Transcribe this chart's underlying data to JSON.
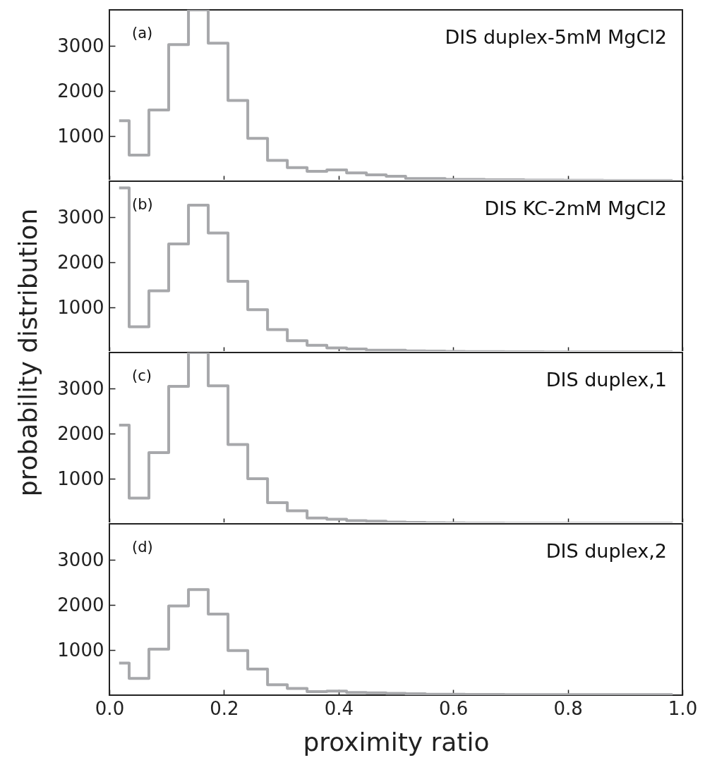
{
  "chart_data": [
    {
      "type": "step",
      "annotations": [
        "(a)",
        "DIS duplex-5mM MgCl2"
      ],
      "x": [
        0.017,
        0.052,
        0.086,
        0.121,
        0.155,
        0.19,
        0.224,
        0.259,
        0.293,
        0.328,
        0.362,
        0.397,
        0.431,
        0.466,
        0.5,
        0.534,
        0.569,
        0.603,
        0.638,
        0.672,
        0.707,
        0.741,
        0.776,
        0.81,
        0.845,
        0.879,
        0.914,
        0.948,
        0.983
      ],
      "series": [
        {
          "color": "#a7a8ab",
          "values": [
            1340,
            580,
            1580,
            3030,
            3800,
            3060,
            1790,
            950,
            460,
            300,
            220,
            250,
            185,
            140,
            110,
            60,
            60,
            40,
            40,
            30,
            30,
            25,
            25,
            20,
            20,
            15,
            15,
            15,
            15
          ]
        }
      ],
      "xlim": [
        0,
        1
      ],
      "ylim": [
        0,
        3800
      ],
      "yticks": [
        1000,
        2000,
        3000
      ],
      "xticks": [
        {
          "value": 0,
          "label": null
        },
        {
          "value": 0.2,
          "label": null
        },
        {
          "value": 0.4,
          "label": null
        },
        {
          "value": 0.6,
          "label": null
        },
        {
          "value": 0.8,
          "label": null
        },
        {
          "value": 1,
          "label": null
        }
      ],
      "tick_labels": "y",
      "grid": false
    },
    {
      "type": "step",
      "annotations": [
        "(b)",
        "DIS KC-2mM MgCl2"
      ],
      "ylabel": "probability distribution",
      "x": [
        0.017,
        0.052,
        0.086,
        0.121,
        0.155,
        0.19,
        0.224,
        0.259,
        0.293,
        0.328,
        0.362,
        0.397,
        0.431,
        0.466,
        0.5,
        0.534,
        0.569,
        0.603,
        0.638,
        0.672,
        0.707,
        0.741,
        0.776,
        0.81,
        0.845,
        0.879,
        0.914,
        0.948,
        0.983
      ],
      "series": [
        {
          "color": "#a7a8ab",
          "values": [
            3650,
            570,
            1370,
            2410,
            3270,
            2650,
            1580,
            950,
            510,
            260,
            160,
            100,
            80,
            50,
            50,
            35,
            30,
            25,
            20,
            20,
            15,
            15,
            10,
            10,
            10,
            10,
            10,
            10,
            10
          ]
        }
      ],
      "xlim": [
        0,
        1
      ],
      "ylim": [
        0,
        3800
      ],
      "yticks": [
        1000,
        2000,
        3000
      ],
      "xticks": [
        {
          "value": 0,
          "label": null
        },
        {
          "value": 0.2,
          "label": null
        },
        {
          "value": 0.4,
          "label": null
        },
        {
          "value": 0.6,
          "label": null
        },
        {
          "value": 0.8,
          "label": null
        },
        {
          "value": 1,
          "label": null
        }
      ],
      "tick_labels": "y",
      "grid": false
    },
    {
      "type": "step",
      "annotations": [
        "(c)",
        "DIS duplex,1"
      ],
      "x": [
        0.017,
        0.052,
        0.086,
        0.121,
        0.155,
        0.19,
        0.224,
        0.259,
        0.293,
        0.328,
        0.362,
        0.397,
        0.431,
        0.466,
        0.5,
        0.534,
        0.569,
        0.603,
        0.638,
        0.672,
        0.707,
        0.741,
        0.776,
        0.81,
        0.845,
        0.879,
        0.914,
        0.948,
        0.983
      ],
      "series": [
        {
          "color": "#a7a8ab",
          "values": [
            2190,
            570,
            1580,
            3050,
            3800,
            3060,
            1760,
            1000,
            470,
            290,
            130,
            100,
            70,
            60,
            40,
            30,
            25,
            20,
            15,
            15,
            10,
            10,
            10,
            10,
            10,
            10,
            10,
            10,
            10
          ]
        }
      ],
      "xlim": [
        0,
        1
      ],
      "ylim": [
        0,
        3800
      ],
      "yticks": [
        1000,
        2000,
        3000
      ],
      "xticks": [
        {
          "value": 0,
          "label": null
        },
        {
          "value": 0.2,
          "label": null
        },
        {
          "value": 0.4,
          "label": null
        },
        {
          "value": 0.6,
          "label": null
        },
        {
          "value": 0.8,
          "label": null
        },
        {
          "value": 1,
          "label": null
        }
      ],
      "tick_labels": "y",
      "grid": false
    },
    {
      "type": "step",
      "annotations": [
        "(d)",
        "DIS duplex,2"
      ],
      "xlabel": "proximity ratio",
      "x": [
        0.017,
        0.052,
        0.086,
        0.121,
        0.155,
        0.19,
        0.224,
        0.259,
        0.293,
        0.328,
        0.362,
        0.397,
        0.431,
        0.466,
        0.5,
        0.534,
        0.569,
        0.603,
        0.638,
        0.672,
        0.707,
        0.741,
        0.776,
        0.81,
        0.845,
        0.879,
        0.914,
        0.948,
        0.983
      ],
      "series": [
        {
          "color": "#a7a8ab",
          "values": [
            710,
            370,
            1020,
            1980,
            2340,
            1800,
            990,
            580,
            230,
            150,
            80,
            90,
            60,
            50,
            40,
            30,
            20,
            20,
            15,
            15,
            10,
            10,
            10,
            10,
            10,
            10,
            10,
            10,
            10
          ]
        }
      ],
      "xlim": [
        0,
        1
      ],
      "ylim": [
        0,
        3800
      ],
      "yticks": [
        1000,
        2000,
        3000
      ],
      "xticks": [
        {
          "value": 0,
          "label": "0.0"
        },
        {
          "value": 0.2,
          "label": "0.2"
        },
        {
          "value": 0.4,
          "label": "0.4"
        },
        {
          "value": 0.6,
          "label": "0.6"
        },
        {
          "value": 0.8,
          "label": "0.8"
        },
        {
          "value": 1,
          "label": "1.0"
        }
      ],
      "grid": false
    }
  ]
}
